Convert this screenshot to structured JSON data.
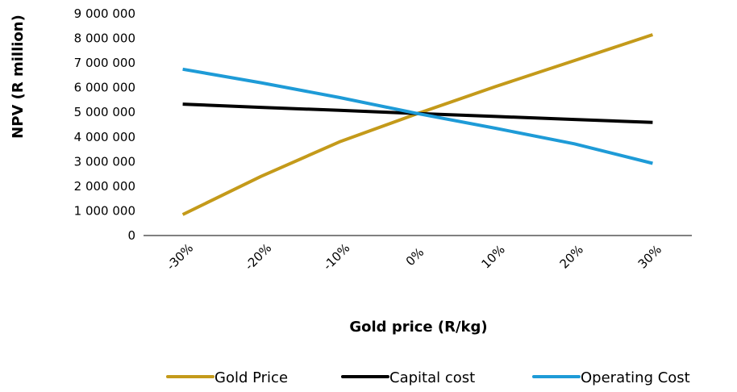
{
  "chart_data": {
    "type": "line",
    "xlabel": "Gold price (R/kg)",
    "ylabel": "NPV (R million)",
    "categories": [
      "-30%",
      "-20%",
      "-10%",
      "0%",
      "10%",
      "20%",
      "30%"
    ],
    "ylim": [
      0,
      9000000
    ],
    "yticks": [
      0,
      1000000,
      2000000,
      3000000,
      4000000,
      5000000,
      6000000,
      7000000,
      8000000,
      9000000
    ],
    "ytick_labels": [
      "0",
      "1 000 000",
      "2 000 000",
      "3 000 000",
      "4 000 000",
      "5 000 000",
      "6 000 000",
      "7 000 000",
      "8 000 000",
      "9 000 000"
    ],
    "grid": false,
    "legend": "bottom",
    "series": [
      {
        "name": "Gold Price",
        "color": "#C49A1A",
        "values": [
          850000,
          2400000,
          3800000,
          4950000,
          6050000,
          7100000,
          8150000
        ]
      },
      {
        "name": "Capital cost",
        "color": "#000000",
        "values": [
          5330000,
          5200000,
          5080000,
          4950000,
          4830000,
          4710000,
          4590000
        ]
      },
      {
        "name": "Operating Cost",
        "color": "#1E9BD7",
        "values": [
          6750000,
          6200000,
          5600000,
          4950000,
          4350000,
          3720000,
          2930000
        ]
      }
    ]
  }
}
